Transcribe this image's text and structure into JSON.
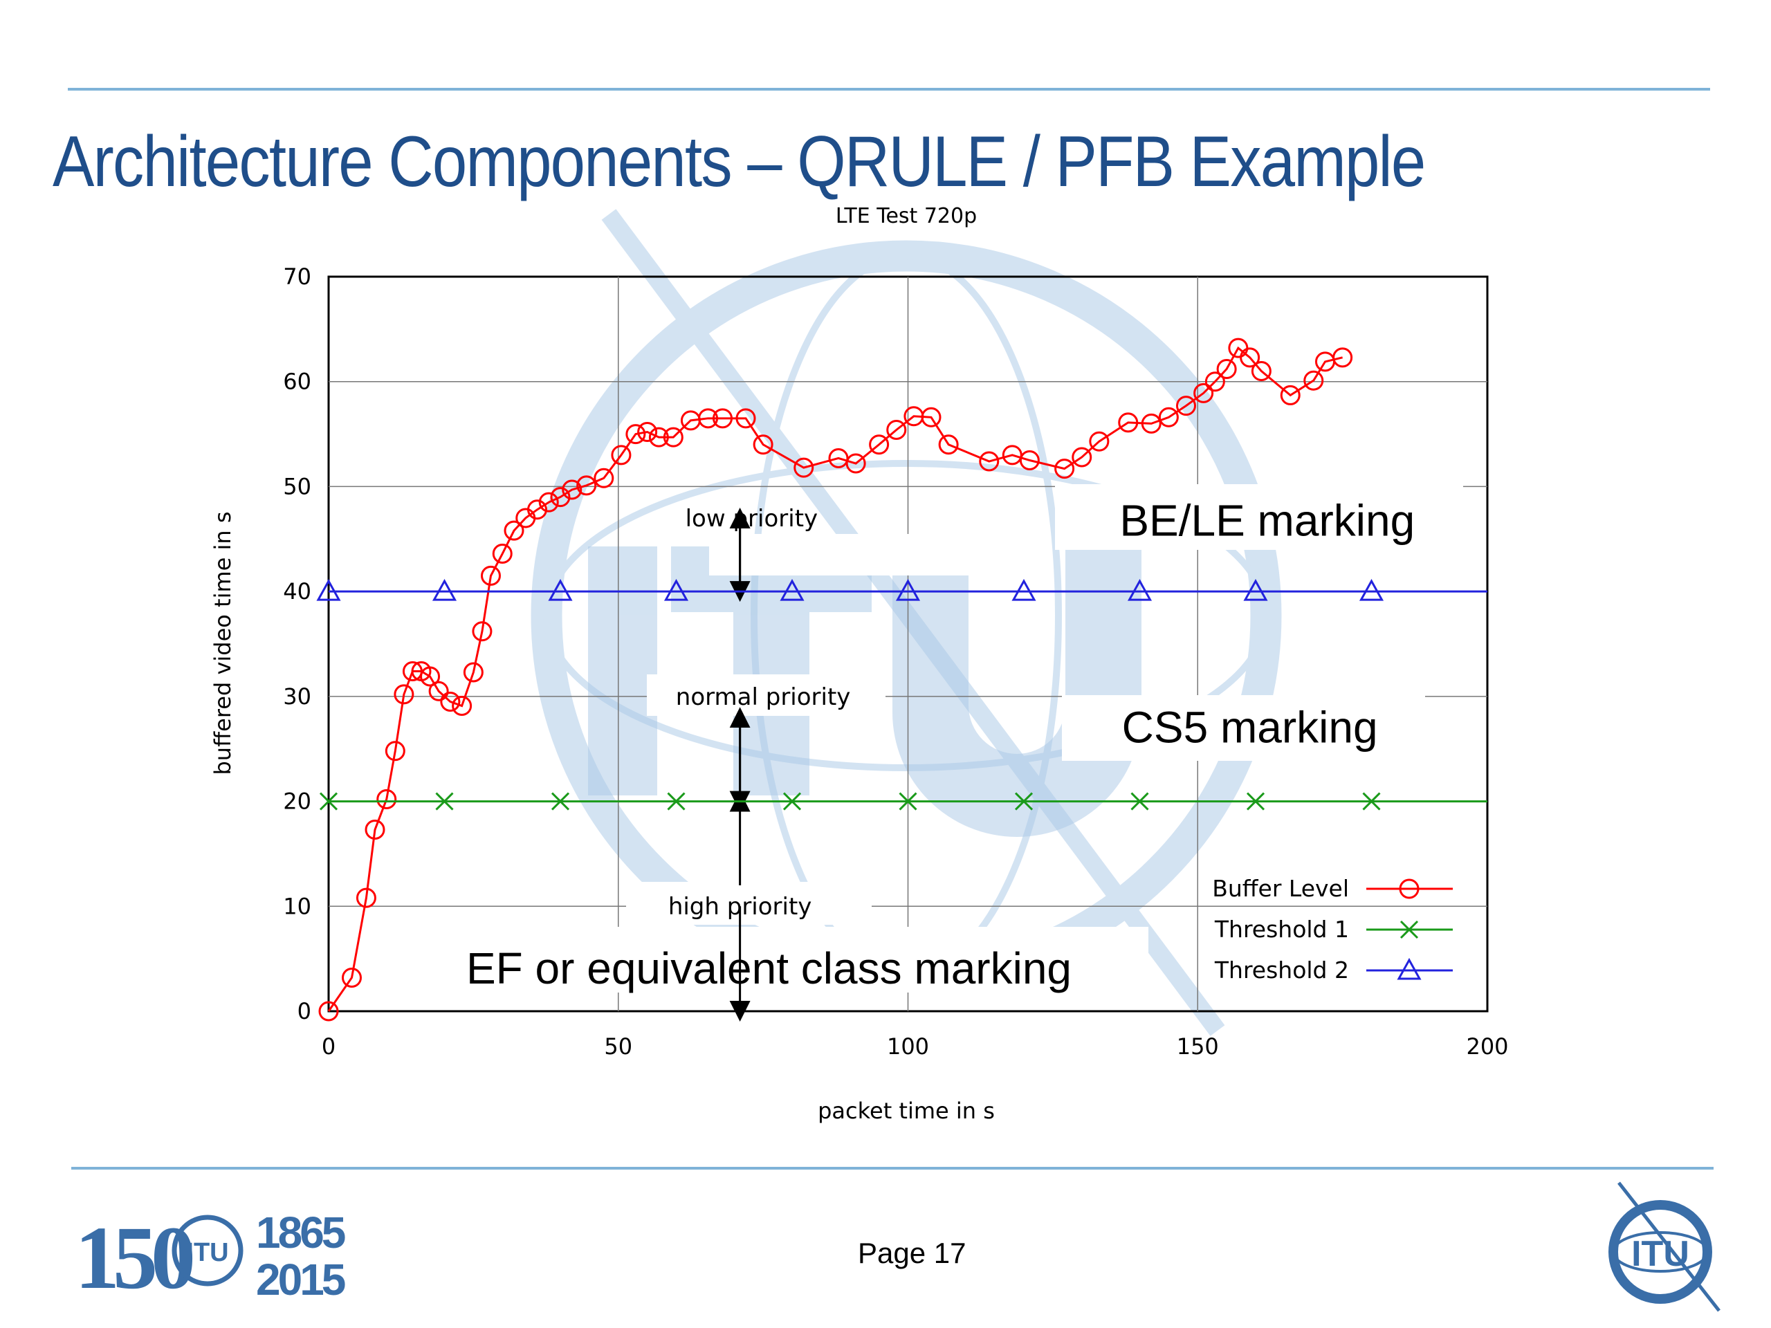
{
  "slide": {
    "title": "Architecture Components – QRULE / PFB Example",
    "page_label": "Page 17"
  },
  "logos": {
    "left": {
      "number": "150",
      "org": "ITU",
      "year_start": "1865",
      "year_end": "2015"
    },
    "right": {
      "org": "ITU"
    }
  },
  "colors": {
    "rule": "#7fb3d8",
    "title": "#1f4e8a",
    "buffer": "#ff0000",
    "threshold1": "#1a9a1a",
    "threshold2": "#2222dd",
    "watermark": "#a9c8e6"
  },
  "chart_data": {
    "type": "line",
    "title": "LTE Test 720p",
    "xlabel": "packet time in s",
    "ylabel": "buffered video time in s",
    "xlim": [
      0,
      200
    ],
    "ylim": [
      0,
      70
    ],
    "xticks": [
      0,
      50,
      100,
      150,
      200
    ],
    "yticks": [
      0,
      10,
      20,
      30,
      40,
      50,
      60,
      70
    ],
    "grid": true,
    "legend_position": "bottom-right",
    "series": [
      {
        "name": "Buffer Level",
        "color": "#ff0000",
        "marker": "circle",
        "x": [
          0,
          4,
          6.5,
          8,
          10,
          11.5,
          13,
          14.5,
          16,
          17.5,
          19,
          21,
          23,
          25,
          26.5,
          28,
          30,
          32,
          34,
          36,
          38,
          40,
          42,
          44.5,
          47.5,
          50.5,
          53,
          55,
          57,
          59.5,
          62.5,
          65.5,
          68,
          72,
          75,
          82,
          88,
          91,
          95,
          98,
          101,
          104,
          107,
          114,
          118,
          121,
          127,
          130,
          133,
          138,
          142,
          145,
          148,
          151,
          153,
          155,
          157,
          159,
          161,
          166,
          170,
          172,
          175
        ],
        "y": [
          0,
          3.2,
          10.8,
          17.3,
          20.2,
          24.8,
          30.2,
          32.4,
          32.4,
          31.9,
          30.5,
          29.5,
          29.1,
          32.3,
          36.2,
          41.5,
          43.6,
          45.8,
          47,
          47.8,
          48.5,
          49,
          49.7,
          50.1,
          50.8,
          53,
          55,
          55.2,
          54.7,
          54.7,
          56.3,
          56.5,
          56.5,
          56.5,
          54,
          51.8,
          52.7,
          52.2,
          54,
          55.4,
          56.7,
          56.6,
          54,
          52.4,
          53,
          52.5,
          51.7,
          52.8,
          54.3,
          56.1,
          56,
          56.6,
          57.7,
          58.9,
          60,
          61.2,
          63.2,
          62.3,
          61,
          58.7,
          60.1,
          61.9,
          62.3
        ]
      },
      {
        "name": "Threshold 1",
        "color": "#1a9a1a",
        "marker": "x",
        "x": [
          0,
          200
        ],
        "y": [
          20,
          20
        ],
        "marker_x": [
          0,
          20,
          40,
          60,
          80,
          100,
          120,
          140,
          160,
          180
        ]
      },
      {
        "name": "Threshold 2",
        "color": "#2222dd",
        "marker": "triangle",
        "x": [
          0,
          200
        ],
        "y": [
          40,
          40
        ],
        "marker_x": [
          0,
          20,
          40,
          60,
          80,
          100,
          120,
          140,
          160,
          180
        ]
      }
    ],
    "annotations": [
      {
        "text": "low priority",
        "x": 73,
        "y": 47
      },
      {
        "text": "normal priority",
        "x": 75,
        "y": 30
      },
      {
        "text": "high priority",
        "x": 71,
        "y": 10
      },
      {
        "text": "BE/LE  marking",
        "x": 162,
        "y": 46.8
      },
      {
        "text": "CS5 marking",
        "x": 159,
        "y": 27.1
      },
      {
        "text": "EF or equivalent class marking",
        "x": 76,
        "y": 4.1
      }
    ],
    "arrows_x": 71
  }
}
